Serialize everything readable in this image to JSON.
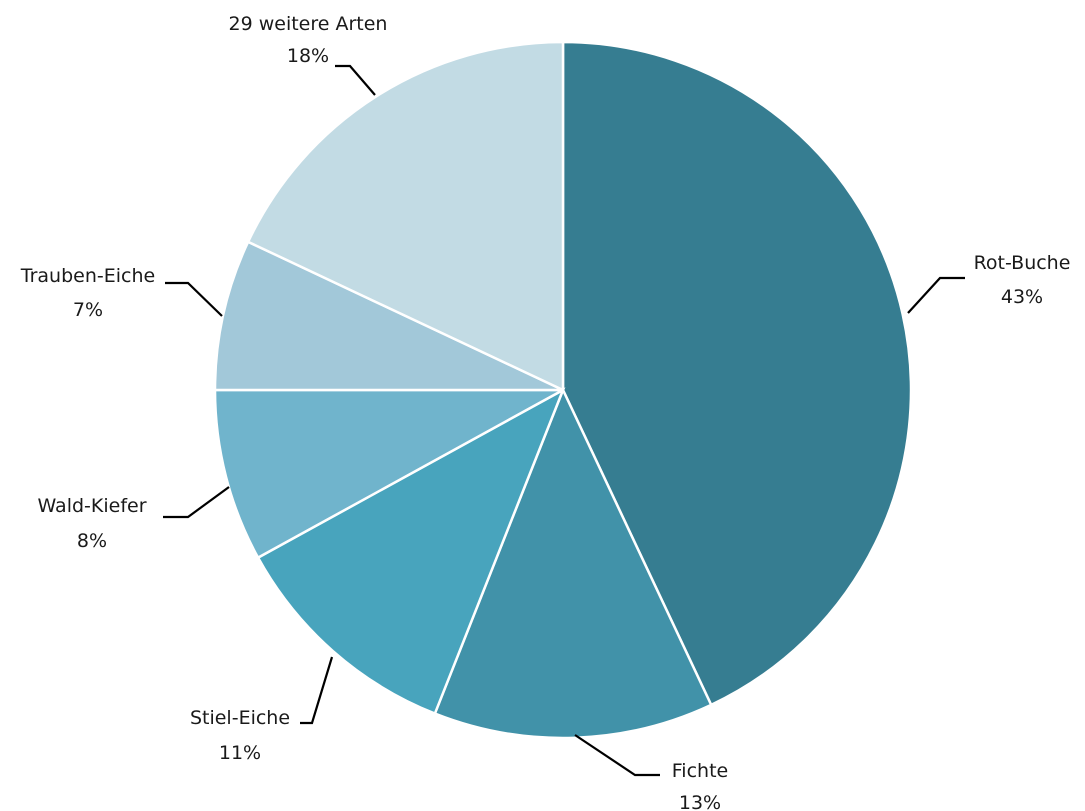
{
  "chart_data": {
    "type": "pie",
    "title": "",
    "slices": [
      {
        "label": "Rot-Buche",
        "value": 43,
        "value_label": "43%",
        "color": "#367D91"
      },
      {
        "label": "Fichte",
        "value": 13,
        "value_label": "13%",
        "color": "#4192A9"
      },
      {
        "label": "Stiel-Eiche",
        "value": 11,
        "value_label": "11%",
        "color": "#48A4BD"
      },
      {
        "label": "Wald-Kiefer",
        "value": 8,
        "value_label": "8%",
        "color": "#70B4CC"
      },
      {
        "label": "Trauben-Eiche",
        "value": 7,
        "value_label": "7%",
        "color": "#A2C8D9"
      },
      {
        "label": "29 weitere Arten",
        "value": 18,
        "value_label": "18%",
        "color": "#C2DBE4"
      }
    ],
    "start_angle": "12 o'clock",
    "direction": "clockwise",
    "legend": "none",
    "data_labels": "outside with leader lines"
  }
}
